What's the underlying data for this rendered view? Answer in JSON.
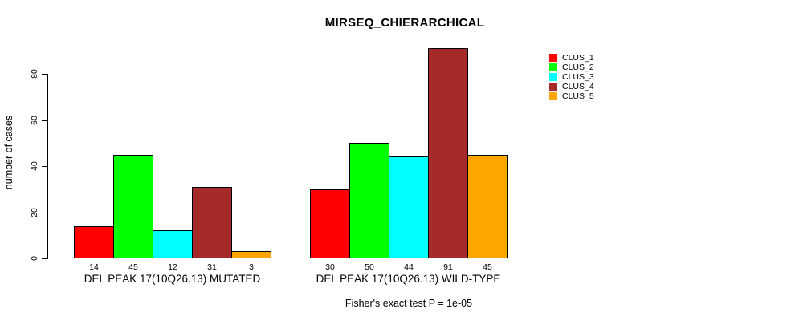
{
  "chart_data": {
    "type": "bar",
    "title": "MIRSEQ_CHIERARCHICAL",
    "ylabel": "number of cases",
    "xlabel": "",
    "footnote": "Fisher's exact test P = 1e-05",
    "categories": [
      "DEL PEAK 17(10Q26.13) MUTATED",
      "DEL PEAK 17(10Q26.13) WILD-TYPE"
    ],
    "series": [
      {
        "name": "CLUS_1",
        "color": "#ff0000",
        "values": [
          14,
          30
        ]
      },
      {
        "name": "CLUS_2",
        "color": "#00ff00",
        "values": [
          45,
          50
        ]
      },
      {
        "name": "CLUS_3",
        "color": "#00ffff",
        "values": [
          12,
          44
        ]
      },
      {
        "name": "CLUS_4",
        "color": "#a52a2a",
        "values": [
          31,
          91
        ]
      },
      {
        "name": "CLUS_5",
        "color": "#ffa500",
        "values": [
          3,
          45
        ]
      }
    ],
    "bar_value_labels": [
      [
        14,
        45,
        12,
        31,
        3
      ],
      [
        30,
        50,
        44,
        91,
        45
      ]
    ],
    "yticks": [
      0,
      20,
      40,
      60,
      80
    ],
    "ylim": [
      0,
      80
    ],
    "grid": false,
    "legend_position": "right",
    "axis_color": "#000000",
    "bar_border_color": "#000000",
    "text_color": "#000000",
    "background_color": "#ffffff"
  }
}
